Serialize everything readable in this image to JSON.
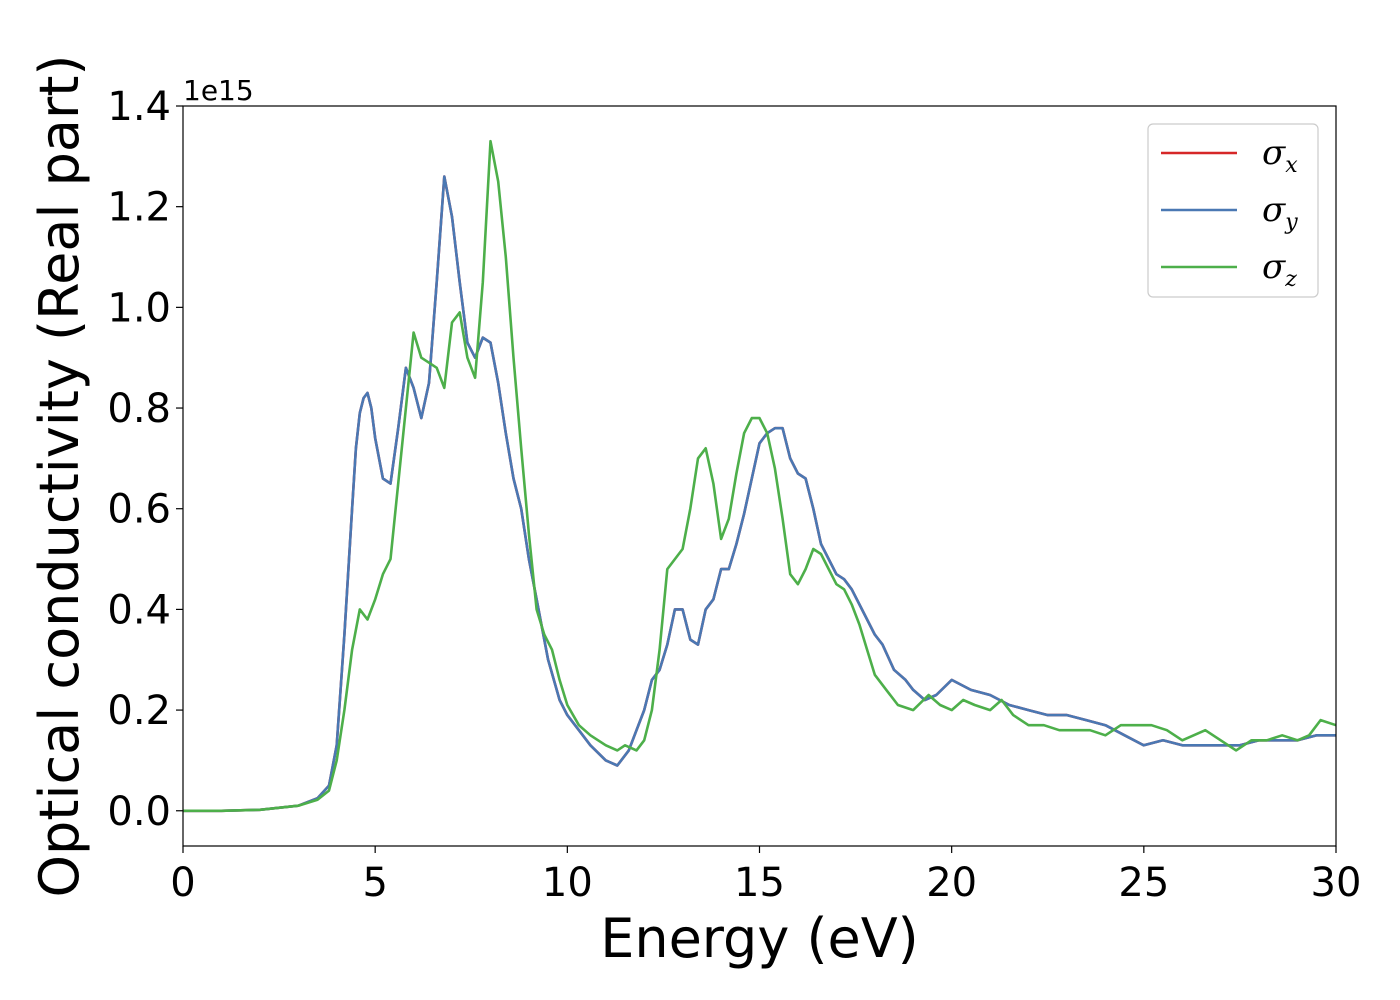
{
  "chart_data": {
    "type": "line",
    "xlabel": "Energy (eV)",
    "ylabel": "Optical conductivity (Real part)",
    "y_offset_label": "1e15",
    "xlim": [
      0,
      30
    ],
    "ylim": [
      -0.07,
      1.4
    ],
    "x_ticks": [
      0,
      5,
      10,
      15,
      20,
      25,
      30
    ],
    "x_tick_labels": [
      "0",
      "5",
      "10",
      "15",
      "20",
      "25",
      "30"
    ],
    "y_ticks": [
      0.0,
      0.2,
      0.4,
      0.6,
      0.8,
      1.0,
      1.2,
      1.4
    ],
    "y_tick_labels": [
      "0.0",
      "0.2",
      "0.4",
      "0.6",
      "0.8",
      "1.0",
      "1.2",
      "1.4"
    ],
    "grid": false,
    "legend_position": "top-right",
    "series": [
      {
        "name": "σx",
        "symbol": "σ",
        "subscript": "x",
        "color": "#d62728",
        "x": [
          0,
          1,
          2,
          3,
          3.5,
          3.8,
          4.0,
          4.2,
          4.4,
          4.5,
          4.6,
          4.7,
          4.8,
          4.9,
          5.0,
          5.2,
          5.4,
          5.6,
          5.8,
          6.0,
          6.2,
          6.4,
          6.6,
          6.8,
          7.0,
          7.2,
          7.4,
          7.6,
          7.8,
          8.0,
          8.2,
          8.4,
          8.6,
          8.8,
          9.0,
          9.2,
          9.5,
          9.8,
          10.0,
          10.3,
          10.6,
          11.0,
          11.3,
          11.6,
          11.8,
          12.0,
          12.2,
          12.4,
          12.6,
          12.8,
          13.0,
          13.2,
          13.4,
          13.6,
          13.8,
          14.0,
          14.2,
          14.4,
          14.6,
          14.8,
          15.0,
          15.2,
          15.4,
          15.6,
          15.8,
          16.0,
          16.2,
          16.4,
          16.6,
          16.8,
          17.0,
          17.2,
          17.4,
          17.6,
          17.8,
          18.0,
          18.2,
          18.5,
          18.8,
          19.0,
          19.3,
          19.6,
          20.0,
          20.5,
          21.0,
          21.5,
          22.0,
          22.5,
          23.0,
          23.5,
          24.0,
          24.5,
          25.0,
          25.5,
          26.0,
          26.5,
          27.0,
          27.5,
          28.0,
          28.5,
          29.0,
          29.5,
          30.0
        ],
        "values": [
          0.0,
          0.0,
          0.002,
          0.01,
          0.025,
          0.05,
          0.13,
          0.35,
          0.6,
          0.72,
          0.79,
          0.82,
          0.83,
          0.8,
          0.74,
          0.66,
          0.65,
          0.76,
          0.88,
          0.84,
          0.78,
          0.85,
          1.05,
          1.26,
          1.18,
          1.05,
          0.93,
          0.9,
          0.94,
          0.93,
          0.85,
          0.75,
          0.66,
          0.6,
          0.5,
          0.42,
          0.3,
          0.22,
          0.19,
          0.16,
          0.13,
          0.1,
          0.09,
          0.12,
          0.16,
          0.2,
          0.26,
          0.28,
          0.33,
          0.4,
          0.4,
          0.34,
          0.33,
          0.4,
          0.42,
          0.48,
          0.48,
          0.53,
          0.59,
          0.66,
          0.73,
          0.75,
          0.76,
          0.76,
          0.7,
          0.67,
          0.66,
          0.6,
          0.53,
          0.5,
          0.47,
          0.46,
          0.44,
          0.41,
          0.38,
          0.35,
          0.33,
          0.28,
          0.26,
          0.24,
          0.22,
          0.23,
          0.26,
          0.24,
          0.23,
          0.21,
          0.2,
          0.19,
          0.19,
          0.18,
          0.17,
          0.15,
          0.13,
          0.14,
          0.13,
          0.13,
          0.13,
          0.13,
          0.14,
          0.14,
          0.14,
          0.15,
          0.15
        ]
      },
      {
        "name": "σy",
        "symbol": "σ",
        "subscript": "y",
        "color": "#4a78b3",
        "x": [
          0,
          1,
          2,
          3,
          3.5,
          3.8,
          4.0,
          4.2,
          4.4,
          4.5,
          4.6,
          4.7,
          4.8,
          4.9,
          5.0,
          5.2,
          5.4,
          5.6,
          5.8,
          6.0,
          6.2,
          6.4,
          6.6,
          6.8,
          7.0,
          7.2,
          7.4,
          7.6,
          7.8,
          8.0,
          8.2,
          8.4,
          8.6,
          8.8,
          9.0,
          9.2,
          9.5,
          9.8,
          10.0,
          10.3,
          10.6,
          11.0,
          11.3,
          11.6,
          11.8,
          12.0,
          12.2,
          12.4,
          12.6,
          12.8,
          13.0,
          13.2,
          13.4,
          13.6,
          13.8,
          14.0,
          14.2,
          14.4,
          14.6,
          14.8,
          15.0,
          15.2,
          15.4,
          15.6,
          15.8,
          16.0,
          16.2,
          16.4,
          16.6,
          16.8,
          17.0,
          17.2,
          17.4,
          17.6,
          17.8,
          18.0,
          18.2,
          18.5,
          18.8,
          19.0,
          19.3,
          19.6,
          20.0,
          20.5,
          21.0,
          21.5,
          22.0,
          22.5,
          23.0,
          23.5,
          24.0,
          24.5,
          25.0,
          25.5,
          26.0,
          26.5,
          27.0,
          27.5,
          28.0,
          28.5,
          29.0,
          29.5,
          30.0
        ],
        "values": [
          0.0,
          0.0,
          0.002,
          0.01,
          0.025,
          0.05,
          0.13,
          0.35,
          0.6,
          0.72,
          0.79,
          0.82,
          0.83,
          0.8,
          0.74,
          0.66,
          0.65,
          0.76,
          0.88,
          0.84,
          0.78,
          0.85,
          1.05,
          1.26,
          1.18,
          1.05,
          0.93,
          0.9,
          0.94,
          0.93,
          0.85,
          0.75,
          0.66,
          0.6,
          0.5,
          0.42,
          0.3,
          0.22,
          0.19,
          0.16,
          0.13,
          0.1,
          0.09,
          0.12,
          0.16,
          0.2,
          0.26,
          0.28,
          0.33,
          0.4,
          0.4,
          0.34,
          0.33,
          0.4,
          0.42,
          0.48,
          0.48,
          0.53,
          0.59,
          0.66,
          0.73,
          0.75,
          0.76,
          0.76,
          0.7,
          0.67,
          0.66,
          0.6,
          0.53,
          0.5,
          0.47,
          0.46,
          0.44,
          0.41,
          0.38,
          0.35,
          0.33,
          0.28,
          0.26,
          0.24,
          0.22,
          0.23,
          0.26,
          0.24,
          0.23,
          0.21,
          0.2,
          0.19,
          0.19,
          0.18,
          0.17,
          0.15,
          0.13,
          0.14,
          0.13,
          0.13,
          0.13,
          0.13,
          0.14,
          0.14,
          0.14,
          0.15,
          0.15
        ]
      },
      {
        "name": "σz",
        "symbol": "σ",
        "subscript": "z",
        "color": "#4daf4a",
        "x": [
          0,
          1,
          2,
          3,
          3.5,
          3.8,
          4.0,
          4.2,
          4.4,
          4.6,
          4.8,
          5.0,
          5.2,
          5.4,
          5.6,
          5.8,
          6.0,
          6.2,
          6.4,
          6.6,
          6.8,
          7.0,
          7.2,
          7.4,
          7.6,
          7.8,
          8.0,
          8.2,
          8.4,
          8.6,
          8.8,
          9.0,
          9.2,
          9.4,
          9.6,
          9.8,
          10.0,
          10.3,
          10.6,
          11.0,
          11.3,
          11.5,
          11.8,
          12.0,
          12.2,
          12.4,
          12.6,
          12.8,
          13.0,
          13.2,
          13.4,
          13.6,
          13.8,
          14.0,
          14.2,
          14.4,
          14.6,
          14.8,
          15.0,
          15.2,
          15.4,
          15.6,
          15.8,
          16.0,
          16.2,
          16.4,
          16.6,
          16.8,
          17.0,
          17.2,
          17.4,
          17.6,
          17.8,
          18.0,
          18.3,
          18.6,
          19.0,
          19.4,
          19.7,
          20.0,
          20.3,
          20.6,
          21.0,
          21.3,
          21.6,
          22.0,
          22.4,
          22.8,
          23.2,
          23.6,
          24.0,
          24.4,
          24.8,
          25.2,
          25.6,
          26.0,
          26.6,
          27.0,
          27.4,
          27.8,
          28.2,
          28.6,
          29.0,
          29.3,
          29.6,
          30.0
        ],
        "values": [
          0.0,
          0.0,
          0.002,
          0.01,
          0.022,
          0.04,
          0.1,
          0.2,
          0.32,
          0.4,
          0.38,
          0.42,
          0.47,
          0.5,
          0.65,
          0.8,
          0.95,
          0.9,
          0.89,
          0.88,
          0.84,
          0.97,
          0.99,
          0.9,
          0.86,
          1.05,
          1.33,
          1.25,
          1.1,
          0.9,
          0.72,
          0.55,
          0.4,
          0.35,
          0.32,
          0.26,
          0.21,
          0.17,
          0.15,
          0.13,
          0.12,
          0.13,
          0.12,
          0.14,
          0.2,
          0.32,
          0.48,
          0.5,
          0.52,
          0.6,
          0.7,
          0.72,
          0.65,
          0.54,
          0.58,
          0.67,
          0.75,
          0.78,
          0.78,
          0.75,
          0.68,
          0.58,
          0.47,
          0.45,
          0.48,
          0.52,
          0.51,
          0.48,
          0.45,
          0.44,
          0.41,
          0.37,
          0.32,
          0.27,
          0.24,
          0.21,
          0.2,
          0.23,
          0.21,
          0.2,
          0.22,
          0.21,
          0.2,
          0.22,
          0.19,
          0.17,
          0.17,
          0.16,
          0.16,
          0.16,
          0.15,
          0.17,
          0.17,
          0.17,
          0.16,
          0.14,
          0.16,
          0.14,
          0.12,
          0.14,
          0.14,
          0.15,
          0.14,
          0.15,
          0.18,
          0.17
        ]
      }
    ]
  }
}
